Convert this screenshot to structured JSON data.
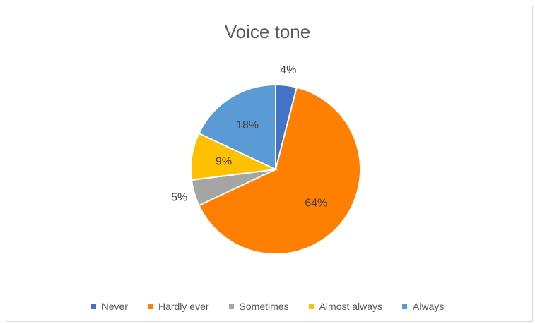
{
  "chart_data": {
    "type": "pie",
    "title": "Voice tone",
    "categories": [
      "Never",
      "Hardly ever",
      "Sometimes",
      "Almost always",
      "Always"
    ],
    "values": [
      4,
      64,
      5,
      9,
      18
    ],
    "labels": [
      "4%",
      "64%",
      "5%",
      "9%",
      "18%"
    ],
    "colors": [
      "#4472c4",
      "#ff7f00",
      "#a5a5a5",
      "#ffc000",
      "#5b9bd5"
    ],
    "legend_position": "bottom"
  }
}
